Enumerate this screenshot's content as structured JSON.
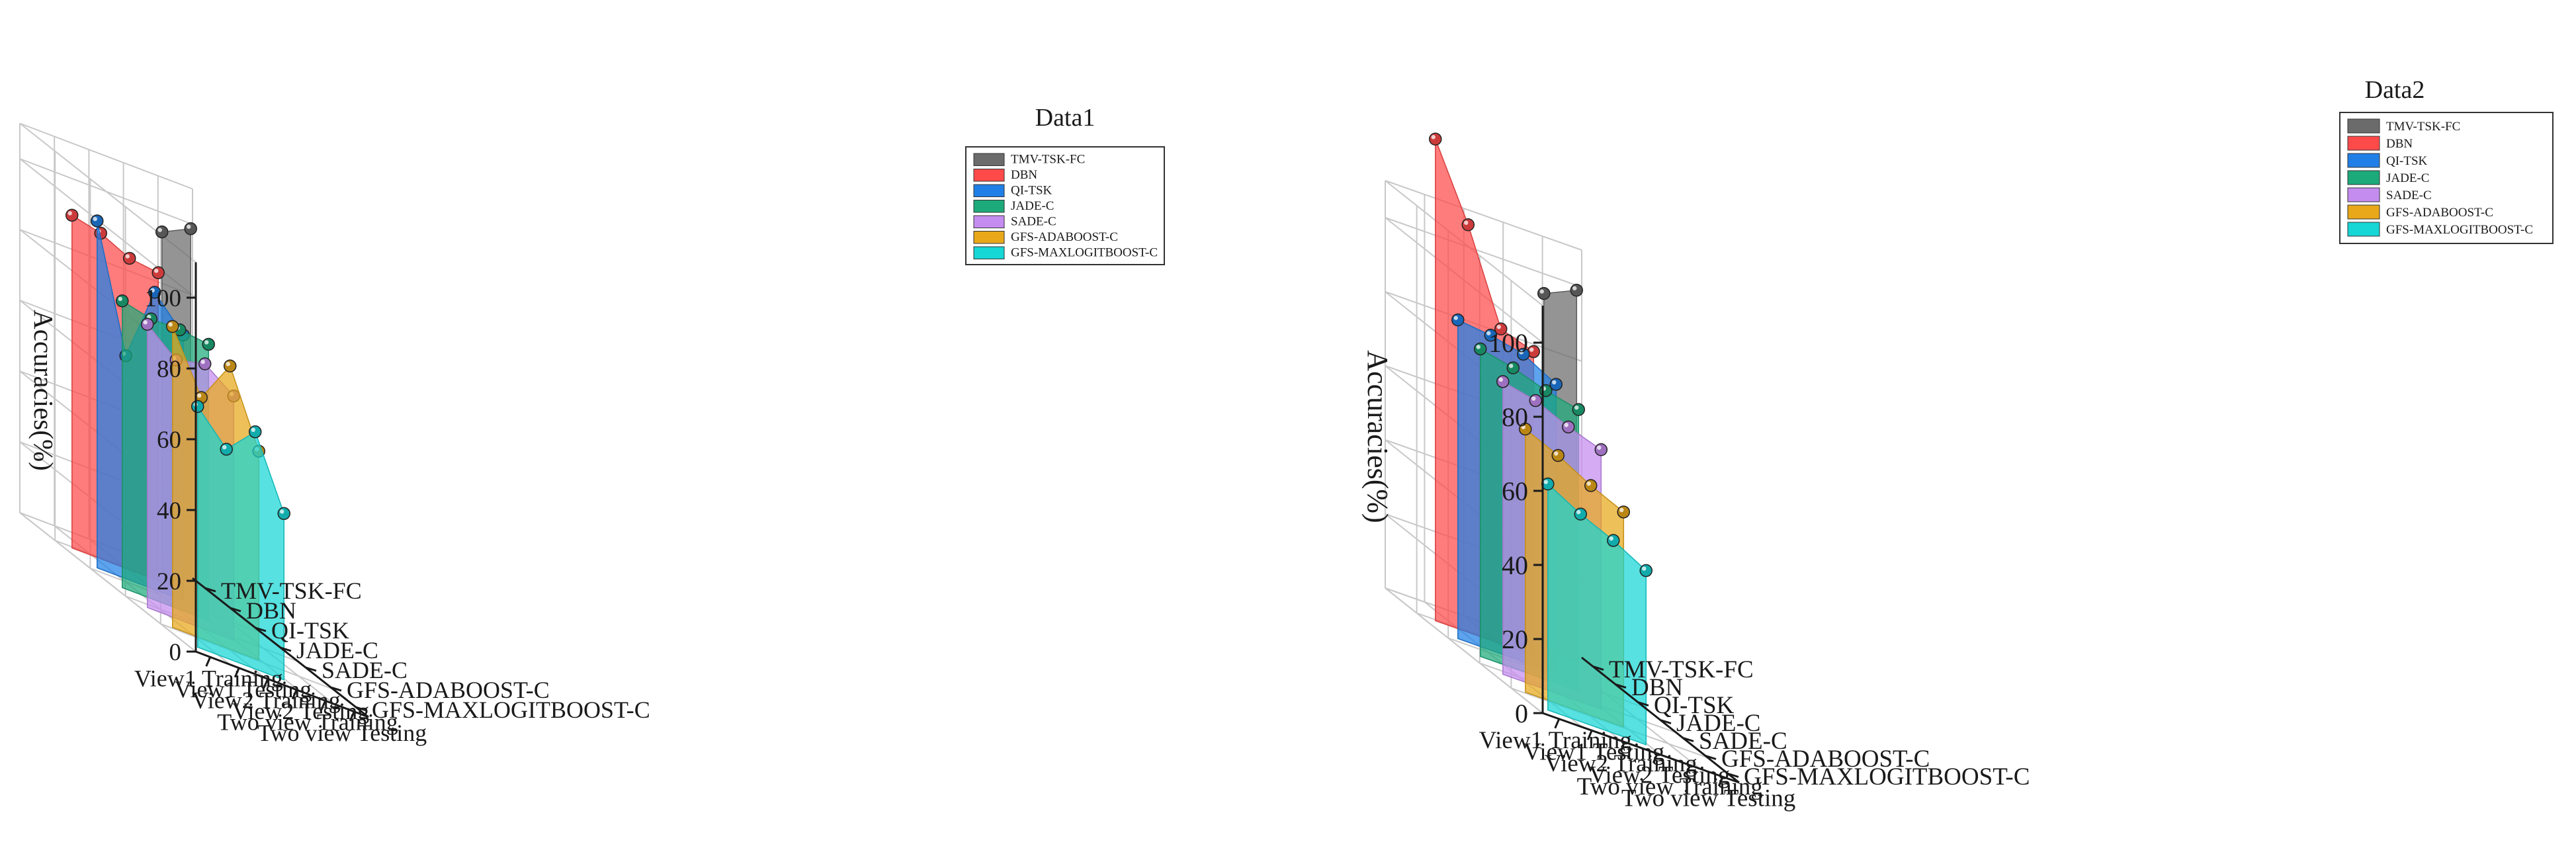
{
  "chart_data": [
    {
      "type": "3d-waterfall-area",
      "title": "Data1",
      "ylabel": "Accuracies(%)",
      "zlim": [
        0,
        110
      ],
      "z_ticks": [
        "0",
        "20",
        "40",
        "60",
        "80",
        "100"
      ],
      "categories": [
        "View1 Training",
        "View1 Testing",
        "View2 Training",
        "View2 Testing",
        "Two view Training",
        "Two view Testing"
      ],
      "grid": true,
      "legend_position": "top-right",
      "series": [
        {
          "name": "TMV-TSK-FC",
          "color": "#6b6b6b",
          "values": [
            null,
            null,
            null,
            null,
            96,
            100
          ]
        },
        {
          "name": "DBN",
          "color": "#ff4a4a",
          "values": [
            94,
            92,
            88,
            87,
            null,
            null
          ]
        },
        {
          "name": "QI-TSK",
          "color": "#1f7fe6",
          "values": [
            98,
            63,
            84,
            75,
            null,
            null
          ]
        },
        {
          "name": "JADE-C",
          "color": "#1daa7a",
          "values": [
            81,
            79,
            79,
            78,
            null,
            null
          ]
        },
        {
          "name": "SADE-C",
          "color": "#c58cf0",
          "values": [
            80,
            73,
            75,
            69,
            null,
            null
          ]
        },
        {
          "name": "GFS-ADABOOST-C",
          "color": "#e8a81a",
          "values": [
            85,
            68,
            80,
            59,
            null,
            null
          ]
        },
        {
          "name": "GFS-MAXLOGITBOOST-C",
          "color": "#16d6d6",
          "values": [
            68,
            59,
            67,
            47,
            null,
            null
          ]
        }
      ]
    },
    {
      "type": "3d-waterfall-area",
      "title": "Data2",
      "ylabel": "Accuracies(%)",
      "zlim": [
        0,
        110
      ],
      "z_ticks": [
        "0",
        "20",
        "40",
        "60",
        "80",
        "100"
      ],
      "categories": [
        "View1 Training",
        "View1 Testing",
        "View2 Training",
        "View2 Testing",
        "Two view Training",
        "Two view Testing"
      ],
      "grid": true,
      "legend_position": "top-right",
      "series": [
        {
          "name": "TMV-TSK-FC",
          "color": "#6b6b6b",
          "values": [
            null,
            null,
            null,
            null,
            96,
            100
          ]
        },
        {
          "name": "DBN",
          "color": "#ff4a4a",
          "values": [
            130,
            110,
            85,
            82,
            null,
            null
          ]
        },
        {
          "name": "QI-TSK",
          "color": "#1f7fe6",
          "values": [
            86,
            85,
            83,
            78,
            null,
            null
          ]
        },
        {
          "name": "JADE-C",
          "color": "#1daa7a",
          "values": [
            83,
            81,
            78,
            76,
            null,
            null
          ]
        },
        {
          "name": "SADE-C",
          "color": "#c58cf0",
          "values": [
            79,
            77,
            73,
            70,
            null,
            null
          ]
        },
        {
          "name": "GFS-ADABOOST-C",
          "color": "#e8a81a",
          "values": [
            71,
            67,
            62,
            58,
            null,
            null
          ]
        },
        {
          "name": "GFS-MAXLOGITBOOST-C",
          "color": "#16d6d6",
          "values": [
            61,
            56,
            52,
            47,
            null,
            null
          ]
        }
      ]
    }
  ]
}
